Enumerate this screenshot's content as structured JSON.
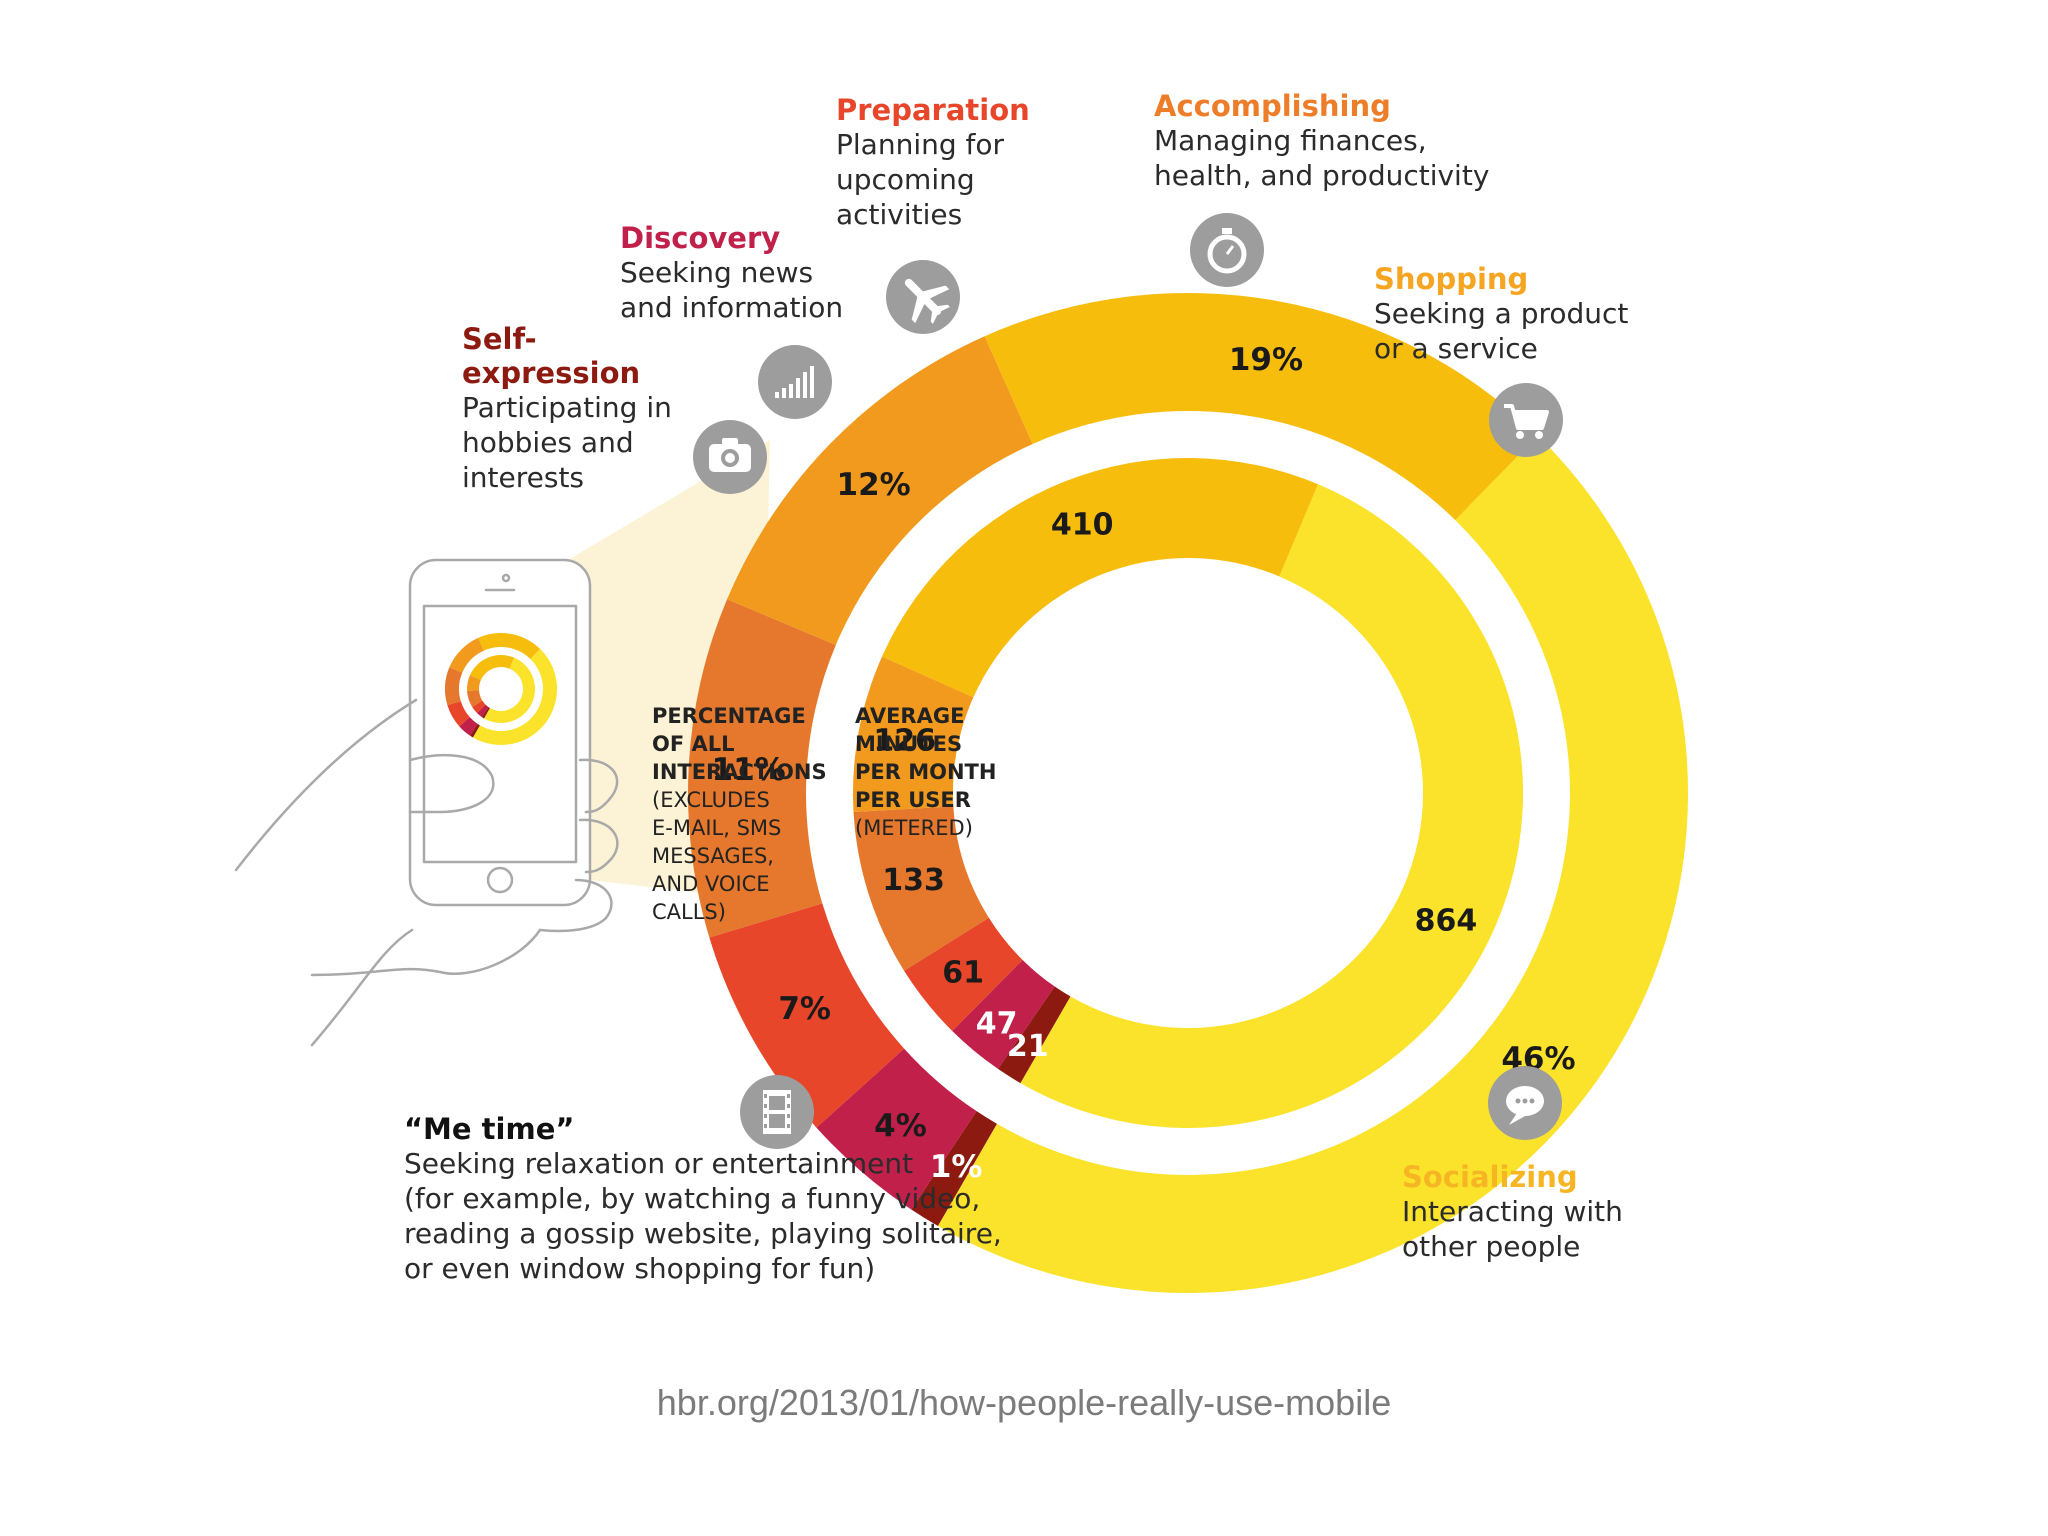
{
  "chart_data": {
    "type": "donut",
    "outer_ring": {
      "measure": "PERCENTAGE OF ALL INTERACTIONS",
      "note": "(EXCLUDES E-MAIL, SMS MESSAGES, AND VOICE CALLS)",
      "categories": [
        "Self-expression",
        "Discovery",
        "Preparation",
        "Accomplishing",
        "Shopping",
        "Socializing",
        "“Me time”"
      ],
      "values": [
        1,
        4,
        7,
        11,
        12,
        19,
        46
      ],
      "labels": [
        "1%",
        "4%",
        "7%",
        "11%",
        "12%",
        "19%",
        "46%"
      ]
    },
    "inner_ring": {
      "measure": "AVERAGE MINUTES PER MONTH PER USER",
      "note": "(METERED)",
      "categories": [
        "Self-expression",
        "Discovery",
        "Preparation",
        "Accomplishing",
        "Shopping",
        "Socializing",
        "“Me time”"
      ],
      "values": [
        21,
        47,
        61,
        133,
        126,
        410,
        864
      ],
      "labels": [
        "21",
        "47",
        "61",
        "133",
        "126",
        "410",
        "864"
      ]
    },
    "colors": [
      "#8c1a10",
      "#c0204a",
      "#e8462a",
      "#e5782c",
      "#f29a1e",
      "#f7bd0c",
      "#fbe22b"
    ]
  },
  "center": {
    "outer_title": "PERCENTAGE\nOF ALL\nINTERACTIONS",
    "outer_note": "(EXCLUDES\nE-MAIL, SMS\nMESSAGES,\nAND VOICE\nCALLS)",
    "inner_title": "AVERAGE\nMINUTES\nPER MONTH\nPER USER",
    "inner_note": "(METERED)"
  },
  "categories": {
    "self_expression": {
      "title": "Self-\nexpression",
      "desc": "Participating in\nhobbies and\ninterests",
      "color": "#8c1a10",
      "icon": "camera-icon"
    },
    "discovery": {
      "title": "Discovery",
      "desc": "Seeking news\nand information",
      "color": "#c0204a",
      "icon": "signal-bars-icon"
    },
    "preparation": {
      "title": "Preparation",
      "desc": "Planning for\nupcoming\nactivities",
      "color": "#e8462a",
      "icon": "airplane-icon"
    },
    "accomplishing": {
      "title": "Accomplishing",
      "desc": "Managing finances,\nhealth, and productivity",
      "color": "#ee7d2a",
      "icon": "stopwatch-icon"
    },
    "shopping": {
      "title": "Shopping",
      "desc": "Seeking a product\nor a service",
      "color": "#f6a523",
      "icon": "shopping-cart-icon"
    },
    "socializing": {
      "title": "Socializing",
      "desc": "Interacting with\nother people",
      "color": "#f6b623",
      "icon": "chat-bubble-icon"
    },
    "me_time": {
      "title": "“Me time”",
      "desc": "Seeking relaxation or entertainment\n(for example, by watching a funny video,\nreading a gossip website, playing solitaire,\nor even window shopping for fun)",
      "color": "#111111",
      "icon": "film-strip-icon"
    }
  },
  "illustration": {
    "icon": "hand-holding-phone-icon"
  },
  "source": "hbr.org/2013/01/how-people-really-use-mobile"
}
